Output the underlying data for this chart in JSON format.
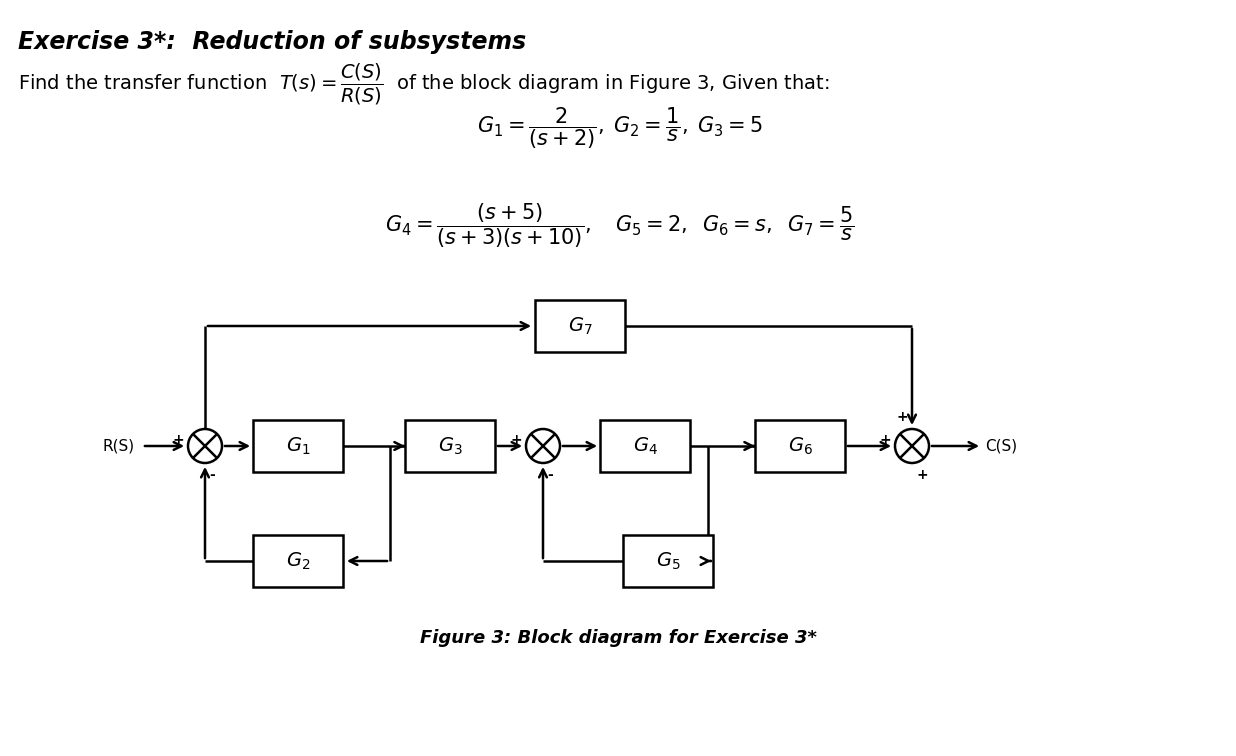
{
  "title": "Exercise 3*:  Reduction of subsystems",
  "bg_color": "#ffffff",
  "text_color": "#000000",
  "block_color": "#ffffff",
  "line_color": "#000000",
  "figure_caption": "Figure 3: Block diagram for Exercise 3*"
}
